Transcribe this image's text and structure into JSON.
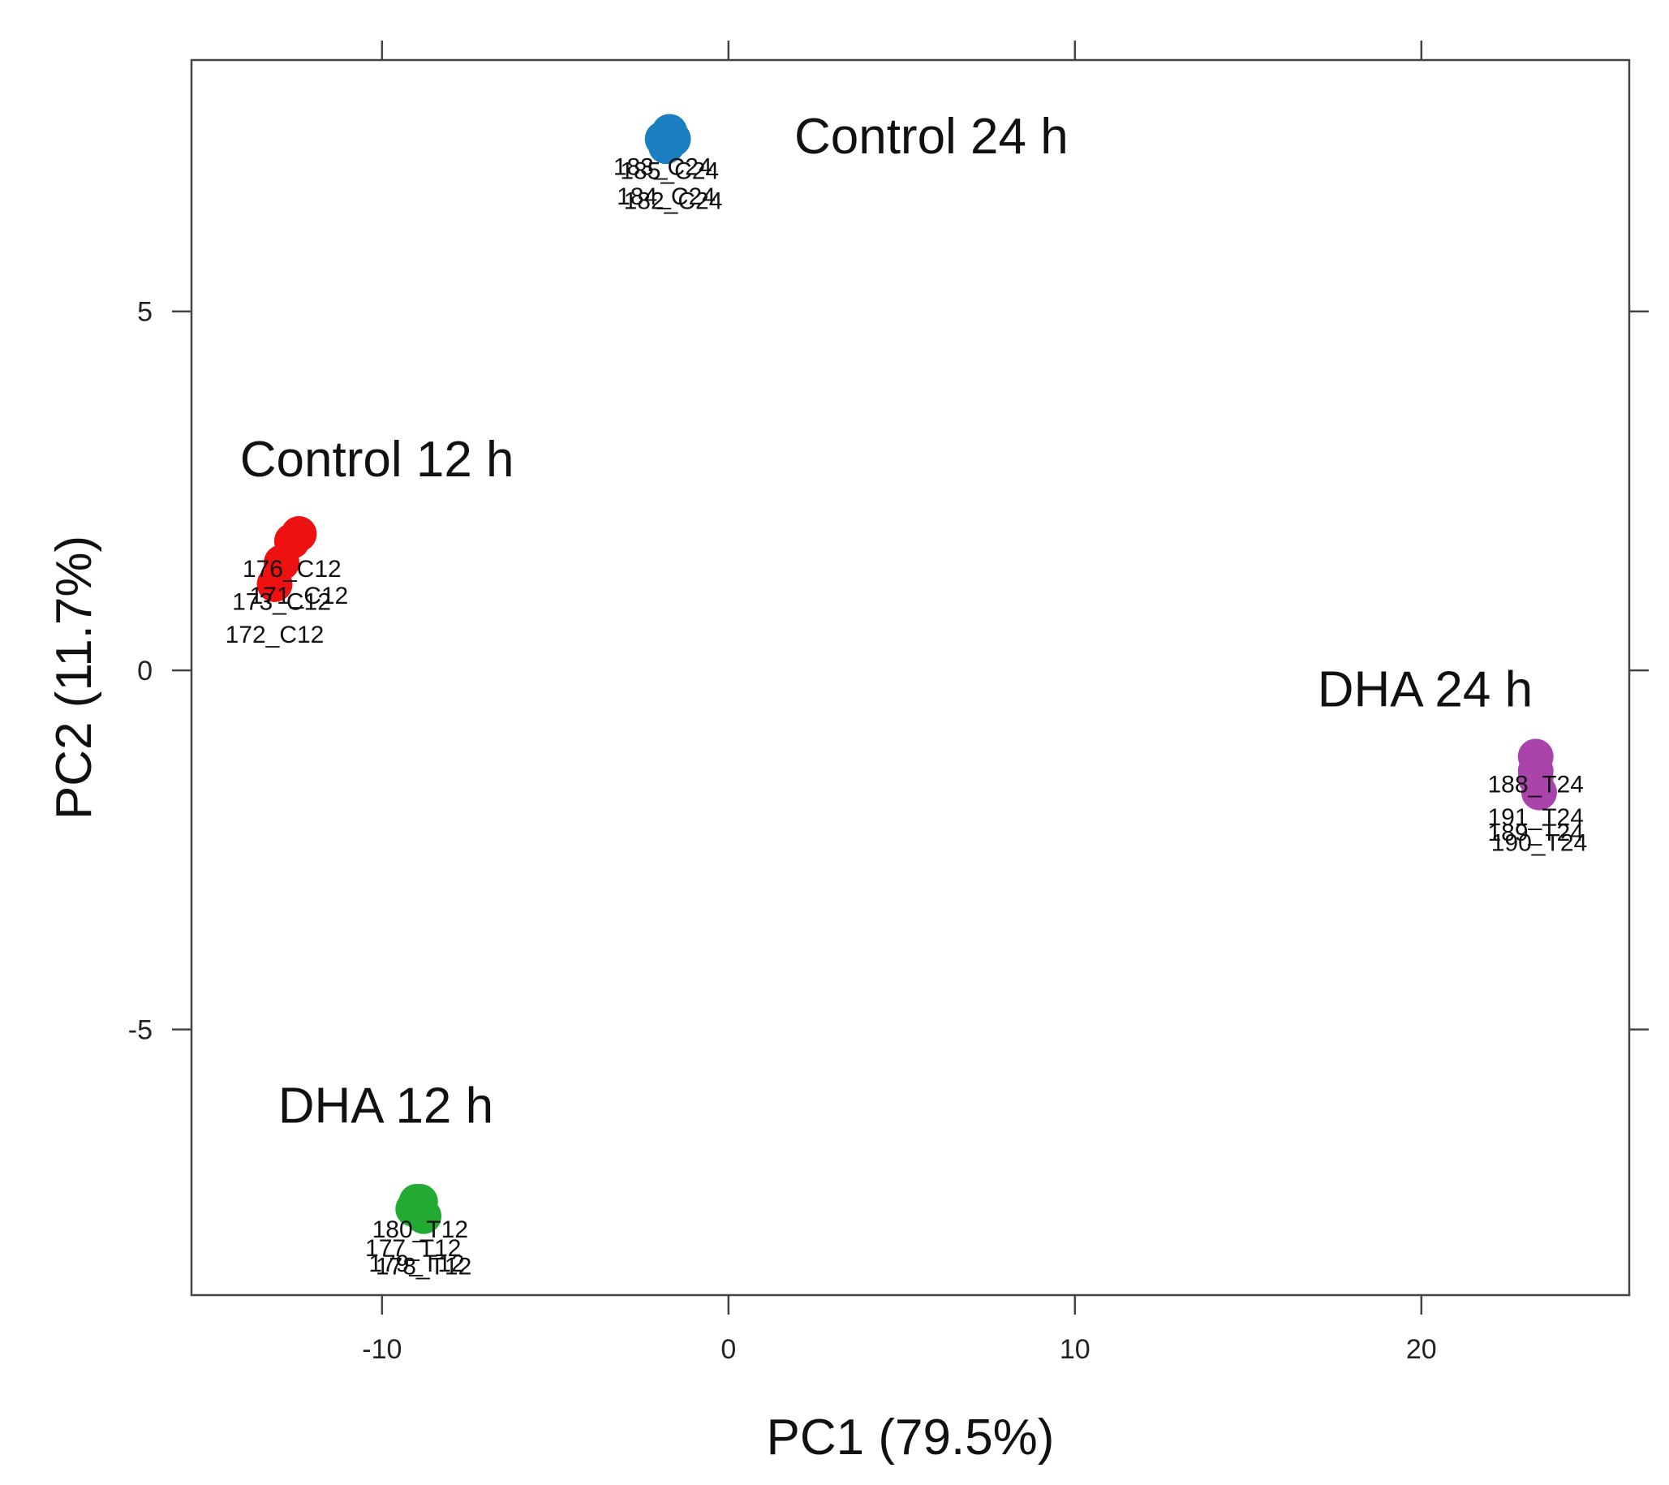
{
  "chart_data": {
    "type": "scatter",
    "xlabel": "PC1 (79.5%)",
    "ylabel": "PC2 (11.7%)",
    "xlim": [
      -15.5,
      26
    ],
    "ylim": [
      -8.7,
      8.5
    ],
    "x_ticks": [
      -10,
      0,
      10,
      20
    ],
    "y_ticks": [
      -5,
      0,
      5
    ],
    "x_tick_labels": [
      "-10",
      "0",
      "10",
      "20"
    ],
    "y_tick_labels": [
      "-5",
      "0",
      "5"
    ],
    "grid": false,
    "series": [
      {
        "name": "Control 12 h",
        "color": "#ee1111",
        "points": [
          {
            "x": -12.6,
            "y": 1.8,
            "label": "176_C12"
          },
          {
            "x": -12.9,
            "y": 1.5,
            "label": "173_C12"
          },
          {
            "x": -13.1,
            "y": 1.2,
            "label": "172_C12"
          },
          {
            "x": -12.4,
            "y": 1.9,
            "label": "171_C12"
          }
        ]
      },
      {
        "name": "Control 24 h",
        "color": "#1a7fc0",
        "points": [
          {
            "x": -1.9,
            "y": 7.4,
            "label": "183_C24"
          },
          {
            "x": -1.7,
            "y": 7.5,
            "label": "185_C24"
          },
          {
            "x": -1.8,
            "y": 7.3,
            "label": "184_C24"
          },
          {
            "x": -1.6,
            "y": 7.4,
            "label": "182_C24"
          }
        ]
      },
      {
        "name": "DHA 12 h",
        "color": "#22aa33",
        "points": [
          {
            "x": -8.9,
            "y": -7.4,
            "label": "180_T12"
          },
          {
            "x": -9.1,
            "y": -7.5,
            "label": "177_T12"
          },
          {
            "x": -8.8,
            "y": -7.6,
            "label": "178_T12"
          },
          {
            "x": -9.0,
            "y": -7.4,
            "label": "179_T12"
          }
        ]
      },
      {
        "name": "DHA 24 h",
        "color": "#aa44aa",
        "points": [
          {
            "x": 23.3,
            "y": -1.2,
            "label": "188_T24"
          },
          {
            "x": 23.3,
            "y": -1.5,
            "label": "191_T24"
          },
          {
            "x": 23.4,
            "y": -1.7,
            "label": "190_T24"
          },
          {
            "x": 23.3,
            "y": -1.4,
            "label": "189_T24"
          }
        ]
      }
    ],
    "group_labels": [
      {
        "text": "Control 24 h",
        "x": 1.9,
        "y": 7.2
      },
      {
        "text": "Control 12 h",
        "x": -14.1,
        "y": 2.7
      },
      {
        "text": "DHA 24 h",
        "x": 17.0,
        "y": -0.5
      },
      {
        "text": "DHA 12 h",
        "x": -13.0,
        "y": -6.3
      }
    ]
  }
}
